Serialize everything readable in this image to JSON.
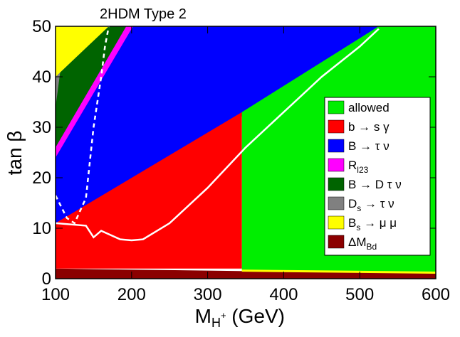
{
  "chart_data": {
    "type": "area",
    "title": "2HDM Type 2",
    "xlabel": {
      "main": "M",
      "sub": "H",
      "sup": "+",
      "unit": " (GeV)"
    },
    "ylabel": "tan β",
    "xlim": [
      100,
      600
    ],
    "ylim": [
      0,
      50
    ],
    "xticks": [
      100,
      200,
      300,
      400,
      500,
      600
    ],
    "yticks": [
      0,
      10,
      20,
      30,
      40,
      50
    ],
    "colors": {
      "allowed": "#00ee00",
      "bsgamma": "#ff0000",
      "btaunu": "#0000ff",
      "rl23": "#ff00ff",
      "bdtaunu": "#006400",
      "dstaunu": "#808080",
      "bsmumu": "#ffff00",
      "deltambd": "#8b0000"
    },
    "regions": {
      "deltambd": [
        [
          100,
          0
        ],
        [
          100,
          2.0
        ],
        [
          200,
          1.8
        ],
        [
          300,
          1.6
        ],
        [
          400,
          1.4
        ],
        [
          500,
          1.3
        ],
        [
          600,
          1.2
        ],
        [
          600,
          0
        ]
      ],
      "btaunu": [
        [
          100,
          2.0
        ],
        [
          100,
          50
        ],
        [
          525,
          50
        ],
        [
          355,
          33
        ],
        [
          100,
          11
        ]
      ],
      "bsgamma": [
        [
          100,
          2.0
        ],
        [
          100,
          11
        ],
        [
          345,
          33
        ],
        [
          345,
          2.0
        ]
      ],
      "allowed": [
        [
          345,
          1.6
        ],
        [
          345,
          33
        ],
        [
          525,
          50
        ],
        [
          600,
          50
        ],
        [
          600,
          1.2
        ]
      ],
      "bdtaunu": [
        [
          100,
          25
        ],
        [
          100,
          40
        ],
        [
          170,
          50
        ],
        [
          193,
          50
        ]
      ],
      "dstaunu": [
        [
          100,
          34
        ],
        [
          100,
          41
        ],
        [
          108,
          43
        ]
      ],
      "bsmumu": [
        [
          100,
          40
        ],
        [
          100,
          50
        ],
        [
          170,
          50
        ]
      ],
      "rl23": [
        [
          100,
          24
        ],
        [
          100,
          26
        ],
        [
          193,
          50
        ],
        [
          202,
          50
        ]
      ]
    },
    "boundary_band": [
      [
        345,
        1.6
      ],
      [
        600,
        1.2
      ]
    ],
    "white_solid_line": [
      [
        100,
        11
      ],
      [
        140,
        10.5
      ],
      [
        150,
        8.2
      ],
      [
        160,
        9.5
      ],
      [
        185,
        7.8
      ],
      [
        200,
        7.6
      ],
      [
        215,
        7.8
      ],
      [
        250,
        11
      ],
      [
        300,
        18
      ],
      [
        350,
        26
      ],
      [
        400,
        33
      ],
      [
        450,
        40
      ],
      [
        500,
        46
      ],
      [
        525,
        49.5
      ]
    ],
    "white_dashed_line": [
      [
        100,
        16.5
      ],
      [
        115,
        12
      ],
      [
        125,
        11
      ],
      [
        140,
        16
      ],
      [
        150,
        30
      ],
      [
        160,
        40
      ],
      [
        165,
        46
      ],
      [
        170,
        50
      ]
    ],
    "legend": [
      {
        "key": "allowed",
        "label": "allowed"
      },
      {
        "key": "bsgamma",
        "label": "b → s γ"
      },
      {
        "key": "btaunu",
        "label": "B → τ ν"
      },
      {
        "key": "rl23",
        "label": "R",
        "sub": "l23"
      },
      {
        "key": "bdtaunu",
        "label": "B → D τ ν"
      },
      {
        "key": "dstaunu",
        "label": "D",
        "sub": "s",
        "tail": " → τ ν"
      },
      {
        "key": "bsmumu",
        "label": "B",
        "sub": "s",
        "tail": " → μ μ"
      },
      {
        "key": "deltambd",
        "label": "ΔM",
        "sub": "Bd"
      }
    ]
  }
}
